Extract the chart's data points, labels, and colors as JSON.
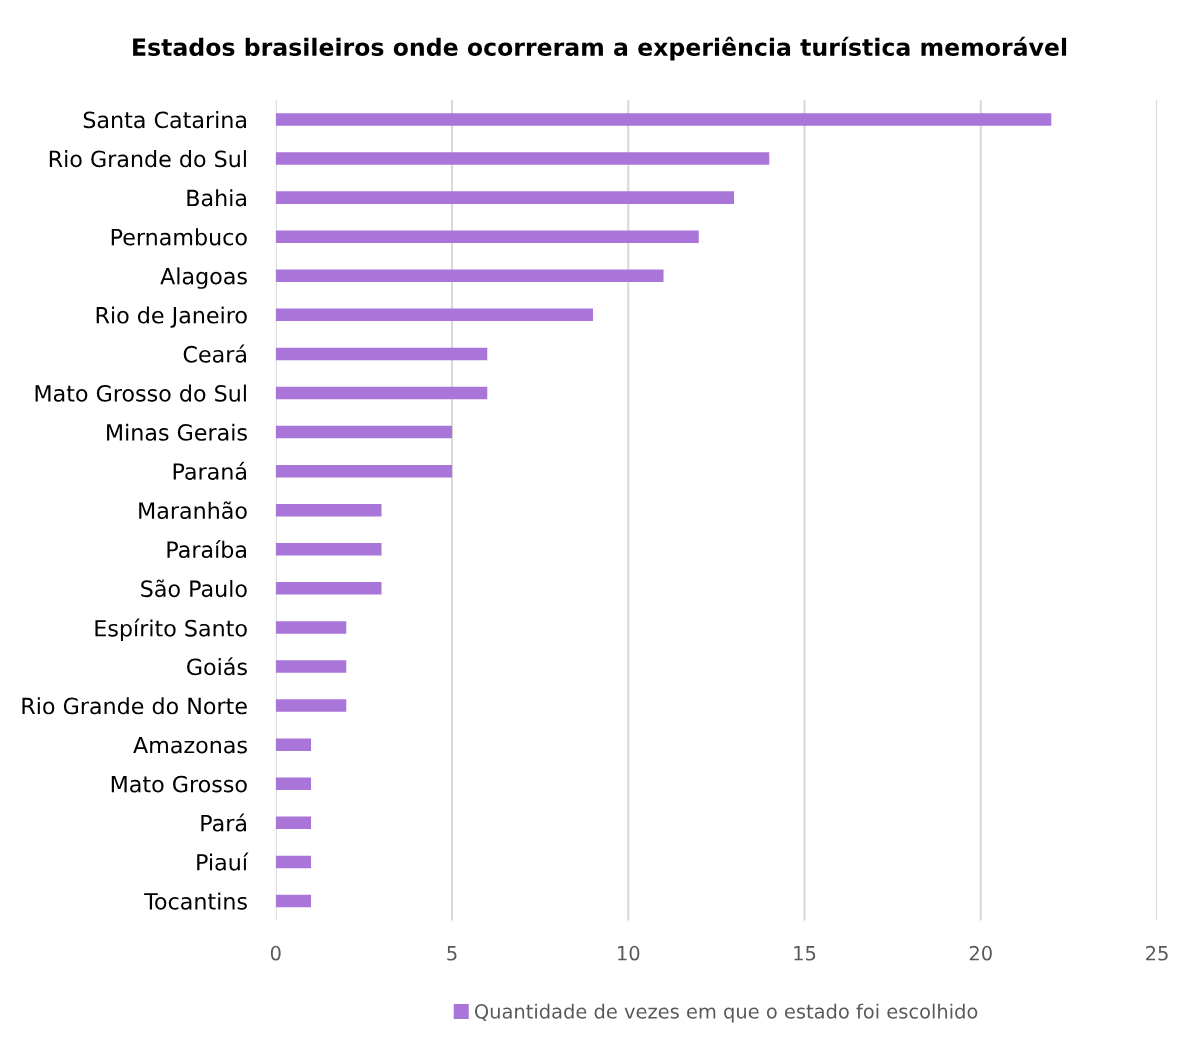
{
  "chart_data": {
    "type": "bar",
    "orientation": "horizontal",
    "title": "Estados brasileiros onde ocorreram a experiência turística memorável",
    "categories": [
      "Santa Catarina",
      "Rio Grande do Sul",
      "Bahia",
      "Pernambuco",
      "Alagoas",
      "Rio de Janeiro",
      "Ceará",
      "Mato Grosso do Sul",
      "Minas Gerais",
      "Paraná",
      "Maranhão",
      "Paraíba",
      "São Paulo",
      "Espírito Santo",
      "Goiás",
      "Rio Grande do Norte",
      "Amazonas",
      "Mato Grosso",
      "Pará",
      "Piauí",
      "Tocantins"
    ],
    "series": [
      {
        "name": "Quantidade de vezes em que o estado foi escolhido",
        "color": "#a975d8",
        "values": [
          22,
          14,
          13,
          12,
          11,
          9,
          6,
          6,
          5,
          5,
          3,
          3,
          3,
          2,
          2,
          2,
          1,
          1,
          1,
          1,
          1
        ]
      }
    ],
    "xlim": [
      0,
      25
    ],
    "xticks": [
      0,
      5,
      10,
      15,
      20,
      25
    ],
    "grid": "x",
    "legend": "bottom"
  }
}
